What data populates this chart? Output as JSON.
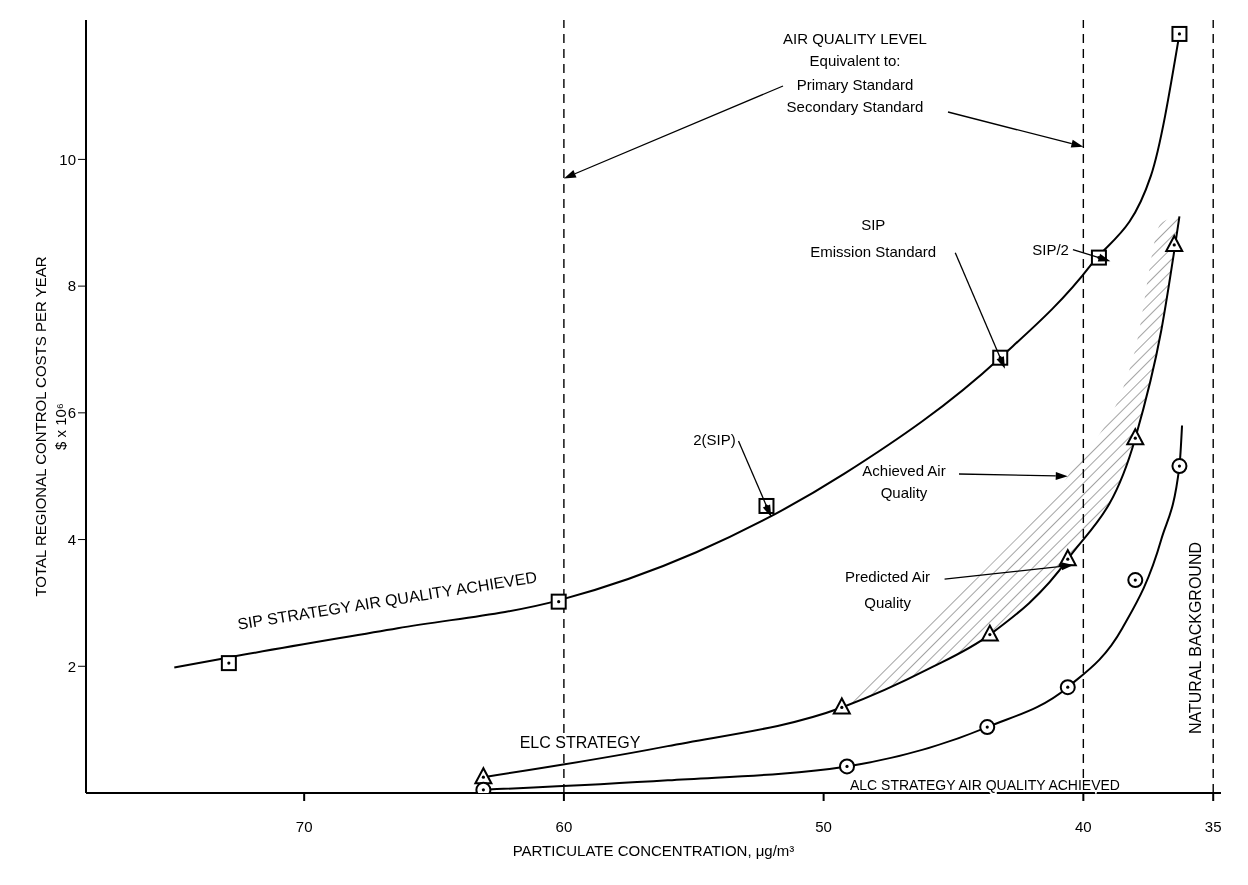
{
  "chart_data": {
    "type": "line",
    "xlabel": "PARTICULATE CONCENTRATION, μg/m³",
    "ylabel": "TOTAL REGIONAL CONTROL COSTS PER YEAR\n$ x 10⁶",
    "xlim": [
      78.4,
      34.7
    ],
    "xticks": [
      70,
      60,
      50,
      40,
      35
    ],
    "ylim": [
      0,
      12.2
    ],
    "yticks": [
      2,
      4,
      6,
      8,
      10
    ],
    "grid": false,
    "legend": false,
    "series": [
      {
        "name": "SIP STRATEGY AIR QUALITY ACHIEVED",
        "color": "#000000",
        "marker": "none",
        "line_style": "solid",
        "x": [
          75.0,
          72.9,
          66.4,
          60.2,
          54.9,
          49.2,
          43.2,
          39.7,
          37.4,
          36.3
        ],
        "values": [
          1.98,
          2.14,
          2.6,
          3.04,
          3.8,
          5.04,
          6.87,
          8.34,
          9.74,
          11.98
        ]
      },
      {
        "type": "scatter",
        "color": "#000000",
        "marker": "square",
        "x": [
          72.9,
          60.2,
          52.2,
          43.2,
          39.4,
          36.3
        ],
        "values": [
          2.05,
          3.02,
          4.53,
          6.87,
          8.45,
          11.98
        ]
      },
      {
        "name": "ELC STRATEGY",
        "color": "#000000",
        "marker": "none",
        "line_style": "solid",
        "x": [
          63.1,
          56,
          49.3,
          46,
          43.6,
          40.6,
          38,
          37,
          36.3
        ],
        "values": [
          0.25,
          0.74,
          1.35,
          1.95,
          2.5,
          3.69,
          5.6,
          7.3,
          9.1
        ],
        "lower": [
          null,
          null,
          1.35,
          1.95,
          2.5,
          3.69,
          5.6,
          7.3,
          9.1
        ],
        "upper": [
          null,
          null,
          1.35,
          2.68,
          3.6,
          5.0,
          7.0,
          9.0,
          9.1
        ]
      },
      {
        "type": "scatter",
        "color": "#000000",
        "marker": "triangle",
        "x": [
          63.1,
          49.3,
          43.6,
          40.6,
          38.0,
          36.5
        ],
        "values": [
          0.25,
          1.35,
          2.5,
          3.69,
          5.6,
          8.65
        ]
      },
      {
        "name": "ALC STRATEGY AIR QUALITY ACHIEVED",
        "color": "#000000",
        "marker": "none",
        "line_style": "solid",
        "x": [
          63.1,
          56,
          49.1,
          43.7,
          40.6,
          38.5,
          37,
          36.3,
          36.2
        ],
        "values": [
          0.05,
          0.2,
          0.42,
          1.04,
          1.67,
          2.6,
          4.0,
          5.16,
          5.8
        ]
      },
      {
        "type": "scatter",
        "color": "#000000",
        "marker": "circle",
        "x": [
          63.1,
          49.1,
          43.7,
          40.6,
          38.0,
          36.3
        ],
        "values": [
          0.05,
          0.42,
          1.04,
          1.67,
          3.36,
          5.16
        ]
      }
    ],
    "ref_lines": [
      {
        "axis": "x",
        "value": 60,
        "line_style": "dashed",
        "color": "#000000"
      },
      {
        "axis": "x",
        "value": 40,
        "line_style": "dashed",
        "color": "#000000"
      },
      {
        "axis": "x",
        "value": 35,
        "label": "NATURAL BACKGROUND",
        "line_style": "dashed",
        "color": "#000000"
      }
    ],
    "annotations": [
      "AIR QUALITY LEVEL\nEquivalent to:",
      {
        "text": "SIP/2",
        "x": 39.4,
        "y": 8.45
      },
      {
        "text": "SIP\nEmission Standard",
        "x": 43.2,
        "y": 6.87
      },
      {
        "text": "2(SIP)",
        "x": 52.2,
        "y": 4.53
      },
      "Achieved Air\nQuality",
      {
        "text": "Predicted Air\nQuality",
        "x": 40.8,
        "y": 3.58
      },
      "Primary Standard",
      "Secondary Standard"
    ]
  }
}
